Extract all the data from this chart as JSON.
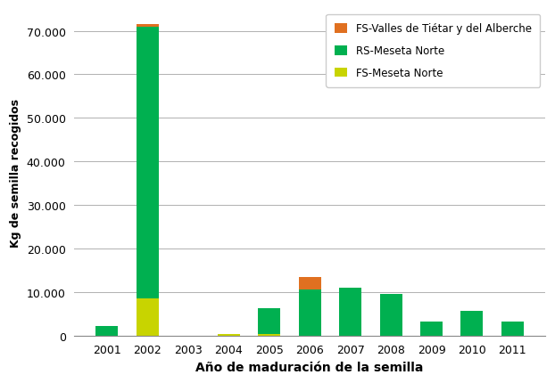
{
  "years": [
    2001,
    2002,
    2003,
    2004,
    2005,
    2006,
    2007,
    2008,
    2009,
    2010,
    2011
  ],
  "rs_meseta_norte": [
    2200,
    62500,
    0,
    0,
    5800,
    10500,
    11000,
    9500,
    3200,
    5700,
    3100
  ],
  "fs_meseta_norte": [
    0,
    8500,
    0,
    300,
    400,
    0,
    0,
    0,
    0,
    0,
    0
  ],
  "fs_valles_tietar": [
    0,
    500,
    0,
    0,
    0,
    3000,
    0,
    0,
    0,
    0,
    0
  ],
  "color_rs": "#00b050",
  "color_fs_meseta": "#c8d400",
  "color_fs_valles": "#e07020",
  "legend_labels": [
    "FS-Valles de Tiétar y del Alberche",
    "RS-Meseta Norte",
    "FS-Meseta Norte"
  ],
  "xlabel": "Año de maduración de la semilla",
  "ylabel": "Kg de semilla recogidos",
  "ylim": [
    0,
    75000
  ],
  "yticks": [
    0,
    10000,
    20000,
    30000,
    40000,
    50000,
    60000,
    70000
  ],
  "ytick_labels": [
    "0",
    "10.000",
    "20.000",
    "30.000",
    "40.000",
    "50.000",
    "60.000",
    "70.000"
  ],
  "bar_width": 0.55,
  "grid_color": "#b0b0b0",
  "bg_color": "#f5f5f5"
}
